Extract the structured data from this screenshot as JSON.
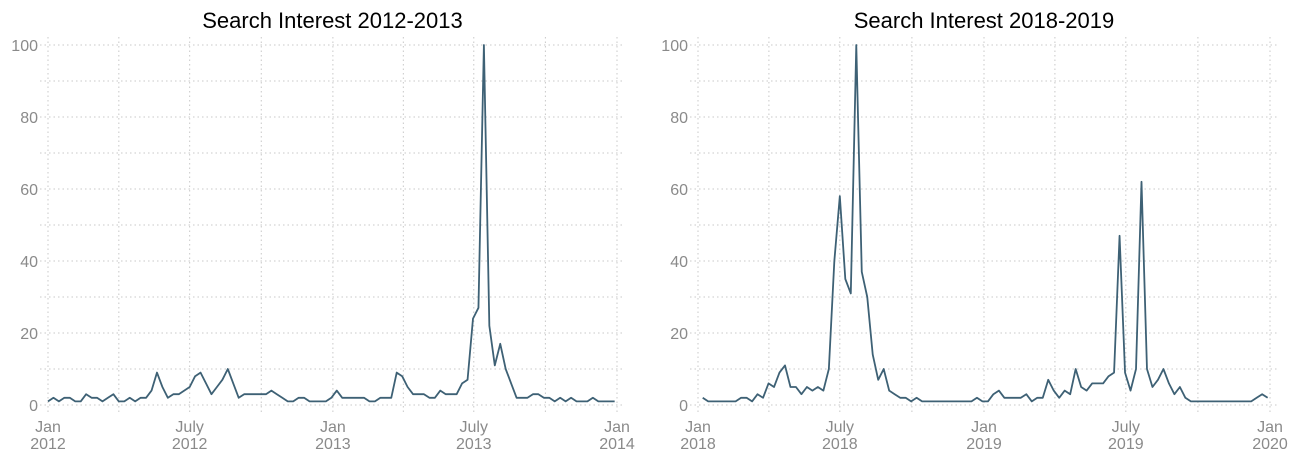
{
  "chart_data": [
    {
      "type": "line",
      "title": "Search Interest 2012-2013",
      "x": [
        "2012-01-01",
        "2012-01-08",
        "2012-01-15",
        "2012-01-22",
        "2012-01-29",
        "2012-02-05",
        "2012-02-12",
        "2012-02-19",
        "2012-02-26",
        "2012-03-04",
        "2012-03-11",
        "2012-03-18",
        "2012-03-25",
        "2012-04-01",
        "2012-04-08",
        "2012-04-15",
        "2012-04-22",
        "2012-04-29",
        "2012-05-06",
        "2012-05-13",
        "2012-05-20",
        "2012-05-27",
        "2012-06-03",
        "2012-06-10",
        "2012-06-17",
        "2012-06-24",
        "2012-07-01",
        "2012-07-08",
        "2012-07-15",
        "2012-07-22",
        "2012-07-29",
        "2012-08-05",
        "2012-08-12",
        "2012-08-19",
        "2012-08-26",
        "2012-09-02",
        "2012-09-09",
        "2012-09-16",
        "2012-09-23",
        "2012-09-30",
        "2012-10-07",
        "2012-10-14",
        "2012-10-21",
        "2012-10-28",
        "2012-11-04",
        "2012-11-11",
        "2012-11-18",
        "2012-11-25",
        "2012-12-02",
        "2012-12-09",
        "2012-12-16",
        "2012-12-23",
        "2012-12-30",
        "2013-01-06",
        "2013-01-13",
        "2013-01-20",
        "2013-01-27",
        "2013-02-03",
        "2013-02-10",
        "2013-02-17",
        "2013-02-24",
        "2013-03-03",
        "2013-03-10",
        "2013-03-17",
        "2013-03-24",
        "2013-03-31",
        "2013-04-07",
        "2013-04-14",
        "2013-04-21",
        "2013-04-28",
        "2013-05-05",
        "2013-05-12",
        "2013-05-19",
        "2013-05-26",
        "2013-06-02",
        "2013-06-09",
        "2013-06-16",
        "2013-06-23",
        "2013-06-30",
        "2013-07-07",
        "2013-07-14",
        "2013-07-21",
        "2013-07-28",
        "2013-08-04",
        "2013-08-11",
        "2013-08-18",
        "2013-08-25",
        "2013-09-01",
        "2013-09-08",
        "2013-09-15",
        "2013-09-22",
        "2013-09-29",
        "2013-10-06",
        "2013-10-13",
        "2013-10-20",
        "2013-10-27",
        "2013-11-03",
        "2013-11-10",
        "2013-11-17",
        "2013-11-24",
        "2013-12-01",
        "2013-12-08",
        "2013-12-15",
        "2013-12-22",
        "2013-12-29"
      ],
      "series": [
        {
          "color": "#3e6175",
          "values": [
            1,
            2,
            1,
            2,
            2,
            1,
            1,
            3,
            2,
            2,
            1,
            2,
            3,
            1,
            1,
            2,
            1,
            2,
            2,
            4,
            9,
            5,
            2,
            3,
            3,
            4,
            5,
            8,
            9,
            6,
            3,
            5,
            7,
            10,
            6,
            2,
            3,
            3,
            3,
            3,
            3,
            4,
            3,
            2,
            1,
            1,
            2,
            2,
            1,
            1,
            1,
            1,
            2,
            4,
            2,
            2,
            2,
            2,
            2,
            1,
            1,
            2,
            2,
            2,
            9,
            8,
            5,
            3,
            3,
            3,
            2,
            2,
            4,
            3,
            3,
            3,
            6,
            7,
            24,
            27,
            100,
            22,
            11,
            17,
            10,
            6,
            2,
            2,
            2,
            3,
            3,
            2,
            2,
            1,
            2,
            1,
            2,
            1,
            1,
            1,
            2,
            1,
            1,
            1,
            1
          ]
        }
      ],
      "xlim": [
        "2012-01-01",
        "2014-01-01"
      ],
      "xticks": [
        {
          "value": "2012-01-01",
          "label": "Jan 2012"
        },
        {
          "value": "2012-07-01",
          "label": "July 2012"
        },
        {
          "value": "2013-01-01",
          "label": "Jan 2013"
        },
        {
          "value": "2013-07-01",
          "label": "July 2013"
        },
        {
          "value": "2014-01-01",
          "label": "Jan 2014"
        }
      ],
      "ylim": [
        0,
        100
      ],
      "yticks": [
        0,
        20,
        40,
        60,
        80,
        100
      ],
      "grid": true
    },
    {
      "type": "line",
      "title": "Search Interest 2018-2019",
      "x": [
        "2018-01-07",
        "2018-01-14",
        "2018-01-21",
        "2018-01-28",
        "2018-02-04",
        "2018-02-11",
        "2018-02-18",
        "2018-02-25",
        "2018-03-04",
        "2018-03-11",
        "2018-03-18",
        "2018-03-25",
        "2018-04-01",
        "2018-04-08",
        "2018-04-15",
        "2018-04-22",
        "2018-04-29",
        "2018-05-06",
        "2018-05-13",
        "2018-05-20",
        "2018-05-27",
        "2018-06-03",
        "2018-06-10",
        "2018-06-17",
        "2018-06-24",
        "2018-07-01",
        "2018-07-08",
        "2018-07-15",
        "2018-07-22",
        "2018-07-29",
        "2018-08-05",
        "2018-08-12",
        "2018-08-19",
        "2018-08-26",
        "2018-09-02",
        "2018-09-09",
        "2018-09-16",
        "2018-09-23",
        "2018-09-30",
        "2018-10-07",
        "2018-10-14",
        "2018-10-21",
        "2018-10-28",
        "2018-11-04",
        "2018-11-11",
        "2018-11-18",
        "2018-11-25",
        "2018-12-02",
        "2018-12-09",
        "2018-12-16",
        "2018-12-23",
        "2018-12-30",
        "2019-01-06",
        "2019-01-13",
        "2019-01-20",
        "2019-01-27",
        "2019-02-03",
        "2019-02-10",
        "2019-02-17",
        "2019-02-24",
        "2019-03-03",
        "2019-03-10",
        "2019-03-17",
        "2019-03-24",
        "2019-03-31",
        "2019-04-07",
        "2019-04-14",
        "2019-04-21",
        "2019-04-28",
        "2019-05-05",
        "2019-05-12",
        "2019-05-19",
        "2019-05-26",
        "2019-06-02",
        "2019-06-09",
        "2019-06-16",
        "2019-06-23",
        "2019-06-30",
        "2019-07-07",
        "2019-07-14",
        "2019-07-21",
        "2019-07-28",
        "2019-08-04",
        "2019-08-11",
        "2019-08-18",
        "2019-08-25",
        "2019-09-01",
        "2019-09-08",
        "2019-09-15",
        "2019-09-22",
        "2019-09-29",
        "2019-10-06",
        "2019-10-13",
        "2019-10-20",
        "2019-10-27",
        "2019-11-03",
        "2019-11-10",
        "2019-11-17",
        "2019-11-24",
        "2019-12-01",
        "2019-12-08",
        "2019-12-15",
        "2019-12-22",
        "2019-12-29"
      ],
      "series": [
        {
          "color": "#3e6175",
          "values": [
            2,
            1,
            1,
            1,
            1,
            1,
            1,
            2,
            2,
            1,
            3,
            2,
            6,
            5,
            9,
            11,
            5,
            5,
            3,
            5,
            4,
            5,
            4,
            10,
            40,
            58,
            35,
            31,
            100,
            37,
            30,
            14,
            7,
            10,
            4,
            3,
            2,
            2,
            1,
            2,
            1,
            1,
            1,
            1,
            1,
            1,
            1,
            1,
            1,
            1,
            2,
            1,
            1,
            3,
            4,
            2,
            2,
            2,
            2,
            3,
            1,
            2,
            2,
            7,
            4,
            2,
            4,
            3,
            10,
            5,
            4,
            6,
            6,
            6,
            8,
            9,
            47,
            9,
            4,
            10,
            62,
            10,
            5,
            7,
            10,
            6,
            3,
            5,
            2,
            1,
            1,
            1,
            1,
            1,
            1,
            1,
            1,
            1,
            1,
            1,
            1,
            2,
            3,
            2
          ]
        }
      ],
      "xlim": [
        "2018-01-01",
        "2020-01-01"
      ],
      "xticks": [
        {
          "value": "2018-01-01",
          "label": "Jan 2018"
        },
        {
          "value": "2018-07-01",
          "label": "July 2018"
        },
        {
          "value": "2019-01-01",
          "label": "Jan 2019"
        },
        {
          "value": "2019-07-01",
          "label": "July 2019"
        },
        {
          "value": "2020-01-01",
          "label": "Jan 2020"
        }
      ],
      "ylim": [
        0,
        100
      ],
      "yticks": [
        0,
        20,
        40,
        60,
        80,
        100
      ],
      "grid": true
    }
  ]
}
